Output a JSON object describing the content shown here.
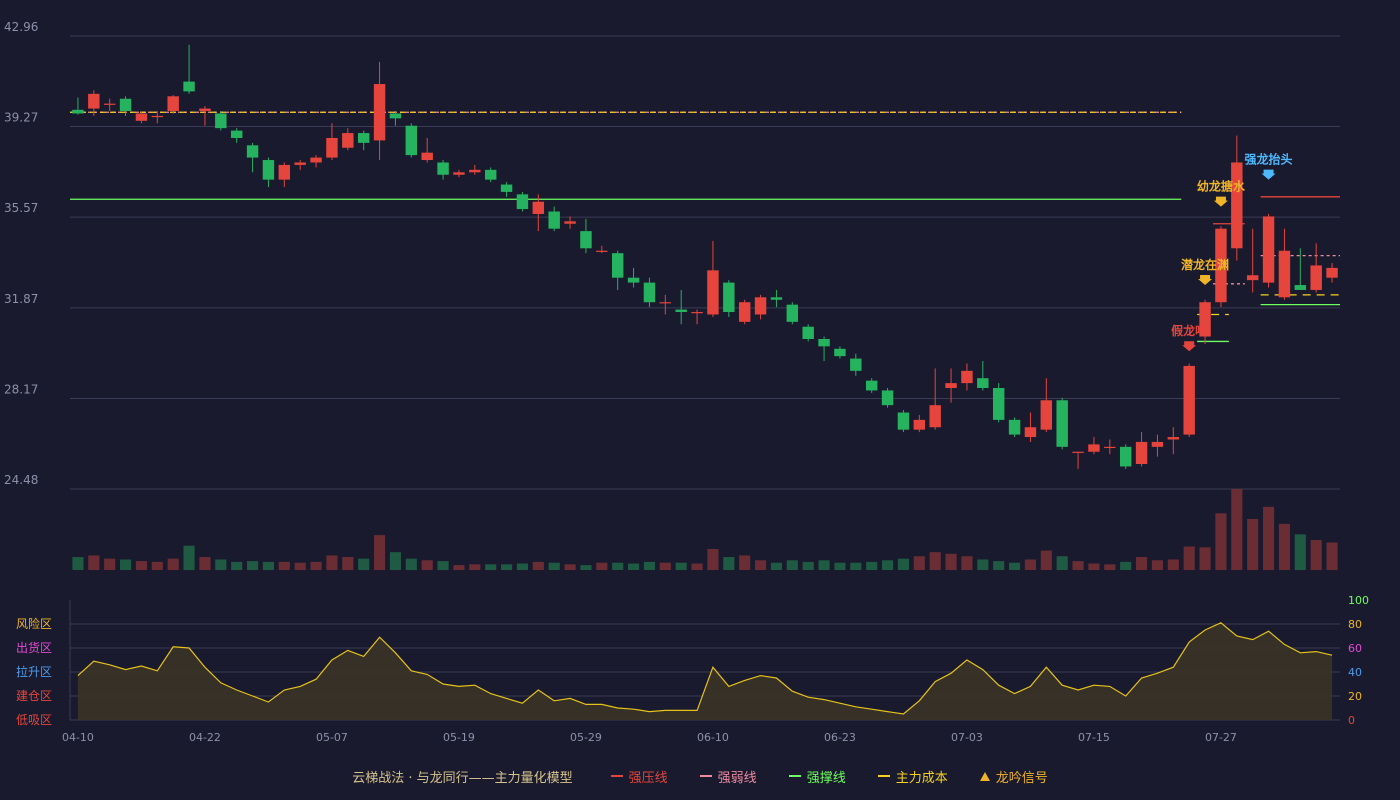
{
  "colors": {
    "background": "#191a2d",
    "grid": "#3a3c55",
    "up": "#e5453c",
    "down": "#26b35f",
    "vol_up": "#6b2d34",
    "vol_down": "#1f5a42",
    "osc_line": "#e6c21a",
    "osc_fill": "#3a3326",
    "strong_pressure": "#e5453c",
    "weak_pressure": "#f08aa0",
    "support": "#6dff5f",
    "main_cost": "#f5d020",
    "axis_text": "#8d90a8"
  },
  "chart_data": {
    "type": "candlestick",
    "price_axis": {
      "ticks": [
        "42.96",
        "39.27",
        "35.57",
        "31.87",
        "28.17",
        "24.48"
      ],
      "ylim": [
        24.48,
        42.96
      ]
    },
    "x_tick_labels": [
      {
        "i": 0,
        "label": "04-10"
      },
      {
        "i": 8,
        "label": "04-22"
      },
      {
        "i": 16,
        "label": "05-07"
      },
      {
        "i": 24,
        "label": "05-19"
      },
      {
        "i": 32,
        "label": "05-29"
      },
      {
        "i": 40,
        "label": "06-10"
      },
      {
        "i": 48,
        "label": "06-23"
      },
      {
        "i": 56,
        "label": "07-03"
      },
      {
        "i": 64,
        "label": "07-15"
      },
      {
        "i": 72,
        "label": "07-27"
      }
    ],
    "candles": [
      [
        39.95,
        39.8,
        40.45,
        39.75
      ],
      [
        40.0,
        40.6,
        40.75,
        39.7
      ],
      [
        40.2,
        40.2,
        40.4,
        39.9
      ],
      [
        40.4,
        39.9,
        40.5,
        39.7
      ],
      [
        39.5,
        39.8,
        39.85,
        39.4
      ],
      [
        39.7,
        39.7,
        39.9,
        39.4
      ],
      [
        39.9,
        40.5,
        40.55,
        39.8
      ],
      [
        41.1,
        40.7,
        42.6,
        40.6
      ],
      [
        39.9,
        40.0,
        40.1,
        39.3
      ],
      [
        39.8,
        39.2,
        39.9,
        39.1
      ],
      [
        39.1,
        38.8,
        39.2,
        38.6
      ],
      [
        38.5,
        38.0,
        38.6,
        37.4
      ],
      [
        37.9,
        37.1,
        38.0,
        36.8
      ],
      [
        37.1,
        37.7,
        37.8,
        36.8
      ],
      [
        37.7,
        37.8,
        37.9,
        37.5
      ],
      [
        37.8,
        38.0,
        38.1,
        37.6
      ],
      [
        38.0,
        38.8,
        39.4,
        37.9
      ],
      [
        38.4,
        39.0,
        39.2,
        38.3
      ],
      [
        39.0,
        38.6,
        39.1,
        38.3
      ],
      [
        38.7,
        41.0,
        41.9,
        37.9
      ],
      [
        39.8,
        39.6,
        39.9,
        39.3
      ],
      [
        39.3,
        38.1,
        39.4,
        38.0
      ],
      [
        37.9,
        38.2,
        38.8,
        37.8
      ],
      [
        37.8,
        37.3,
        37.9,
        37.1
      ],
      [
        37.3,
        37.4,
        37.5,
        37.2
      ],
      [
        37.4,
        37.5,
        37.7,
        37.3
      ],
      [
        37.5,
        37.1,
        37.6,
        37.0
      ],
      [
        36.9,
        36.6,
        37.0,
        36.4
      ],
      [
        36.5,
        35.9,
        36.6,
        35.8
      ],
      [
        35.7,
        36.2,
        36.5,
        35.0
      ],
      [
        35.8,
        35.1,
        36.0,
        35.0
      ],
      [
        35.3,
        35.4,
        35.6,
        35.1
      ],
      [
        35.0,
        34.3,
        35.5,
        34.1
      ],
      [
        34.2,
        34.2,
        34.4,
        34.1
      ],
      [
        34.1,
        33.1,
        34.2,
        32.6
      ],
      [
        33.1,
        32.9,
        33.5,
        32.7
      ],
      [
        32.9,
        32.1,
        33.1,
        31.9
      ],
      [
        32.1,
        32.1,
        32.4,
        31.6
      ],
      [
        31.8,
        31.7,
        32.6,
        31.2
      ],
      [
        31.7,
        31.7,
        31.8,
        31.2
      ],
      [
        31.6,
        33.4,
        34.6,
        31.5
      ],
      [
        32.9,
        31.7,
        33.0,
        31.5
      ],
      [
        31.3,
        32.1,
        32.2,
        31.2
      ],
      [
        31.6,
        32.3,
        32.4,
        31.4
      ],
      [
        32.3,
        32.2,
        32.6,
        31.9
      ],
      [
        32.0,
        31.3,
        32.1,
        31.2
      ],
      [
        31.1,
        30.6,
        31.2,
        30.5
      ],
      [
        30.6,
        30.3,
        30.7,
        29.7
      ],
      [
        30.2,
        29.9,
        30.3,
        29.8
      ],
      [
        29.8,
        29.3,
        30.0,
        29.1
      ],
      [
        28.9,
        28.5,
        29.0,
        28.4
      ],
      [
        28.5,
        27.9,
        28.6,
        27.8
      ],
      [
        27.6,
        26.9,
        27.7,
        26.8
      ],
      [
        26.9,
        27.3,
        27.5,
        26.8
      ],
      [
        27.0,
        27.9,
        29.4,
        26.9
      ],
      [
        28.6,
        28.8,
        29.4,
        28.0
      ],
      [
        28.8,
        29.3,
        29.6,
        28.5
      ],
      [
        29.0,
        28.6,
        29.7,
        28.5
      ],
      [
        28.6,
        27.3,
        28.8,
        27.2
      ],
      [
        27.3,
        26.7,
        27.4,
        26.6
      ],
      [
        26.6,
        27.0,
        27.6,
        26.4
      ],
      [
        26.9,
        28.1,
        29.0,
        26.8
      ],
      [
        28.1,
        26.2,
        28.2,
        26.1
      ],
      [
        26.0,
        26.0,
        26.0,
        25.3
      ],
      [
        26.0,
        26.3,
        26.6,
        25.9
      ],
      [
        26.2,
        26.2,
        26.5,
        25.9
      ],
      [
        26.2,
        25.4,
        26.3,
        25.3
      ],
      [
        25.5,
        26.4,
        26.8,
        25.4
      ],
      [
        26.2,
        26.4,
        26.7,
        25.8
      ],
      [
        26.5,
        26.6,
        27.0,
        25.9
      ],
      [
        26.7,
        29.5,
        29.6,
        26.6
      ],
      [
        30.7,
        32.1,
        32.2,
        30.4
      ],
      [
        32.1,
        35.1,
        35.2,
        31.9
      ],
      [
        34.3,
        37.8,
        38.9,
        33.8
      ],
      [
        33.0,
        33.2,
        35.1,
        32.5
      ],
      [
        32.9,
        35.6,
        35.7,
        32.7
      ],
      [
        32.3,
        34.2,
        35.1,
        32.2
      ],
      [
        32.8,
        32.6,
        34.3,
        32.6
      ],
      [
        32.6,
        33.6,
        34.5,
        32.5
      ],
      [
        33.1,
        33.5,
        33.7,
        32.9
      ]
    ],
    "volume": [
      16,
      18,
      14,
      13,
      11,
      10,
      14,
      30,
      16,
      13,
      10,
      11,
      10,
      10,
      9,
      10,
      18,
      16,
      14,
      43,
      22,
      14,
      12,
      11,
      6,
      7,
      7,
      7,
      8,
      10,
      9,
      7,
      6,
      9,
      9,
      8,
      10,
      9,
      9,
      8,
      26,
      16,
      18,
      12,
      9,
      12,
      10,
      12,
      9,
      9,
      10,
      12,
      14,
      17,
      22,
      20,
      17,
      13,
      11,
      9,
      13,
      24,
      17,
      11,
      8,
      7,
      10,
      16,
      12,
      13,
      29,
      28,
      70,
      100,
      63,
      78,
      57,
      44,
      37,
      34
    ],
    "oscillator": {
      "zones": [
        "风险区",
        "出货区",
        "拉升区",
        "建仓区",
        "低吸区"
      ],
      "zone_colors": [
        "#f0b429",
        "#e04bd5",
        "#4d9be8",
        "#e5453c",
        "#e5453c"
      ],
      "right_ticks": [
        "100",
        "80",
        "60",
        "40",
        "20",
        "0"
      ],
      "right_tick_colors": [
        "#6dff5f",
        "#f0b429",
        "#e04bd5",
        "#4d9be8",
        "#f0b429",
        "#e5453c"
      ],
      "ylim": [
        0,
        100
      ],
      "values": [
        37,
        49,
        46,
        42,
        45,
        41,
        61,
        60,
        44,
        31,
        25,
        20,
        15,
        25,
        28,
        34,
        50,
        58,
        53,
        69,
        56,
        41,
        38,
        30,
        28,
        29,
        22,
        18,
        14,
        25,
        16,
        18,
        13,
        13,
        10,
        9,
        7,
        8,
        8,
        8,
        44,
        28,
        33,
        37,
        35,
        24,
        19,
        17,
        14,
        11,
        9,
        7,
        5,
        16,
        32,
        39,
        50,
        42,
        29,
        22,
        28,
        44,
        29,
        25,
        29,
        28,
        20,
        35,
        39,
        44,
        65,
        75,
        81,
        70,
        67,
        74,
        63,
        56,
        57,
        54
      ]
    },
    "lines": {
      "main_cost_top": {
        "value": 39.85,
        "from_i": 0,
        "to_i": 69
      },
      "support_top": {
        "value": 36.3,
        "from_i": 0,
        "to_i": 69
      },
      "weak_pressure_top": {
        "value": 39.85,
        "from_i": 0,
        "to_i": 69
      },
      "strong_pressure_right": [
        {
          "from_i": 75,
          "to_i": 79,
          "value": 36.4
        }
      ],
      "weak_pressure_right": [
        {
          "from_i": 72,
          "to_i": 73,
          "value": 32.85
        },
        {
          "from_i": 75,
          "to_i": 79,
          "value": 34.0
        }
      ],
      "main_cost_right": [
        {
          "from_i": 71,
          "to_i": 72,
          "value": 31.6
        },
        {
          "from_i": 75,
          "to_i": 79,
          "value": 32.4
        }
      ],
      "support_right": [
        {
          "from_i": 71,
          "to_i": 72,
          "value": 30.5
        },
        {
          "from_i": 75,
          "to_i": 79,
          "value": 32.0
        }
      ],
      "pressure_step": [
        {
          "from_i": 72,
          "to_i": 73,
          "value": 35.3
        }
      ]
    },
    "signals": [
      {
        "i": 70,
        "label": "假龙吟",
        "color": "#e5453c",
        "price": 30.1
      },
      {
        "i": 71,
        "label": "潜龙在渊",
        "color": "#f0b429",
        "price": 32.8
      },
      {
        "i": 72,
        "label": "幼龙搪水",
        "color": "#f0b429",
        "price": 36.0
      },
      {
        "i": 75,
        "label": "强龙抬头",
        "color": "#4db8ff",
        "price": 37.1
      }
    ]
  },
  "legend": {
    "title": "云梯战法 · 与龙同行——主力量化模型",
    "items": [
      {
        "label": "强压线",
        "color": "#e5453c",
        "style": "solid"
      },
      {
        "label": "强弱线",
        "color": "#f08aa0",
        "style": "dashed"
      },
      {
        "label": "强撑线",
        "color": "#6dff5f",
        "style": "solid"
      },
      {
        "label": "主力成本",
        "color": "#f5d020",
        "style": "dashed"
      },
      {
        "label": "龙吟信号",
        "color": "#f0b429",
        "style": "triangle"
      }
    ]
  }
}
